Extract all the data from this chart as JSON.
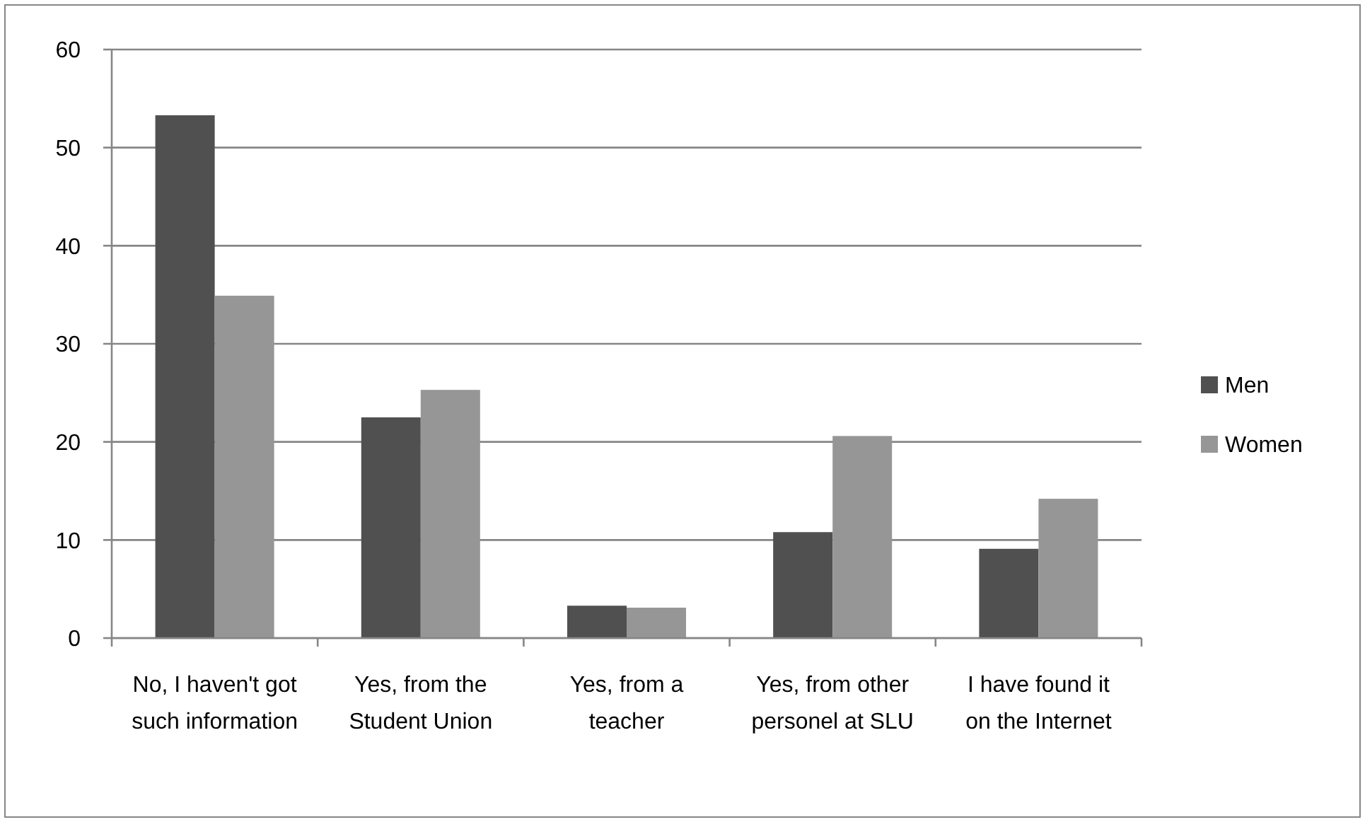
{
  "chart_data": {
    "type": "bar",
    "categories": [
      "No, I haven't got such information",
      "Yes, from the Student Union",
      "Yes, from a teacher",
      "Yes, from other personel at SLU",
      "I have found it on the Internet"
    ],
    "series": [
      {
        "name": "Men",
        "color": "#505050",
        "values": [
          53.3,
          22.5,
          3.3,
          10.8,
          9.1
        ]
      },
      {
        "name": "Women",
        "color": "#969696",
        "values": [
          34.9,
          25.3,
          3.1,
          20.6,
          14.2
        ]
      }
    ],
    "ylim": [
      0,
      60
    ],
    "yticks": [
      0,
      10,
      20,
      30,
      40,
      50,
      60
    ],
    "grid": "y",
    "legend": "right"
  }
}
